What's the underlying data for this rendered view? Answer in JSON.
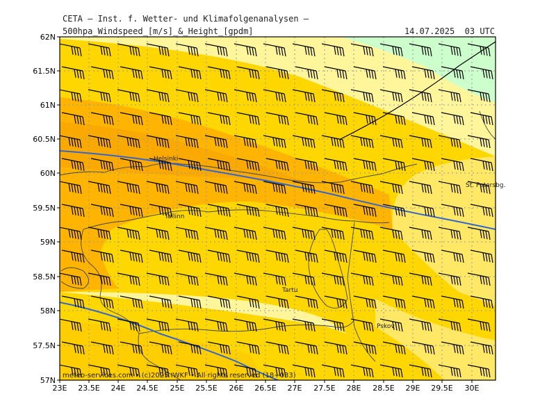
{
  "header": {
    "title": "CETA — Inst. f. Wetter- und Klimafolgenanalysen —",
    "parameter": "500hpa_Windspeed_[m/s]_&_Height_[gpdm]",
    "datetime": "14.07.2025  03 UTC"
  },
  "footer": {
    "credit": "meteo-services.com • (c)2025 IWKF • All rights reserved (18+033)"
  },
  "axes": {
    "lat_labels": [
      "62N",
      "61.5N",
      "61N",
      "60.5N",
      "60N",
      "59.5N",
      "59N",
      "58.5N",
      "58N",
      "57.5N",
      "57N"
    ],
    "lon_labels": [
      "23E",
      "23.5E",
      "24E",
      "24.5E",
      "25E",
      "25.5E",
      "26E",
      "26.5E",
      "27E",
      "27.5E",
      "28E",
      "28.5E",
      "29E",
      "29.5E",
      "30E"
    ]
  },
  "cities": [
    {
      "name": "Helsinki"
    },
    {
      "name": "Tallinn"
    },
    {
      "name": "Tartu"
    },
    {
      "name": "Pskov"
    },
    {
      "name": "St. Petersbg."
    }
  ],
  "colors": {
    "band_light_green": "#ccffcc",
    "band_pale_yellow": "#ffee66",
    "band_yellow": "#ffd700",
    "band_orange": "#ffb400",
    "band_dark_orange": "#f5a000",
    "height_contour": "#3366cc",
    "coastline": "#333333",
    "grid": "#999999"
  },
  "legend": {
    "wind_barbs": "wind direction from west, mostly 20–30 m/s"
  }
}
